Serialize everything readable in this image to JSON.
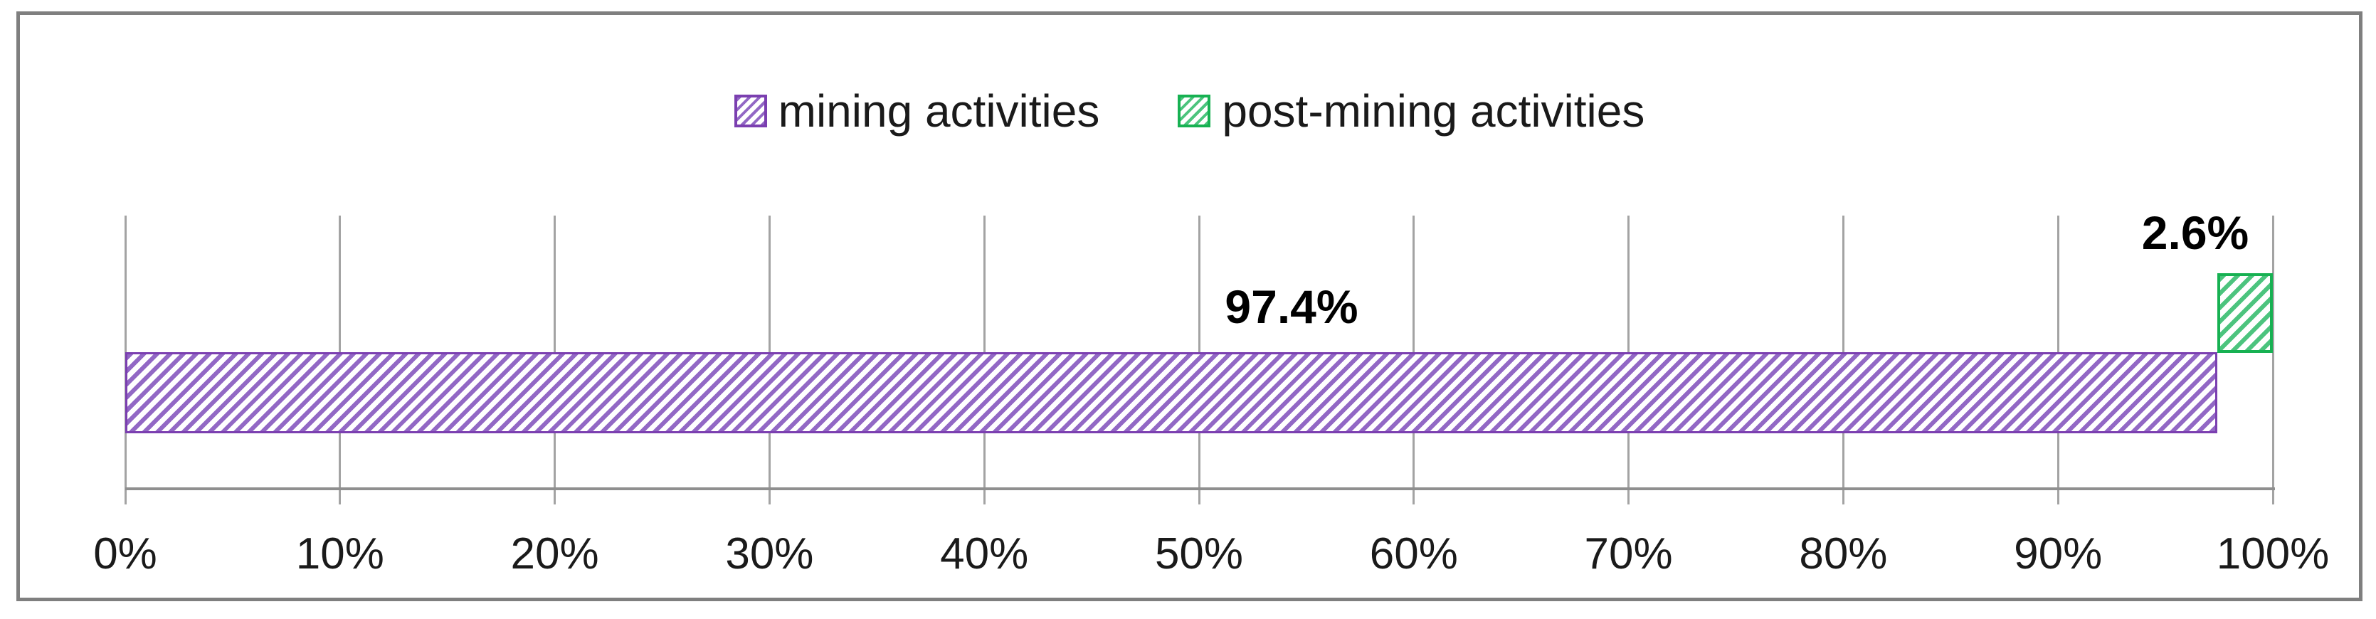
{
  "chart_data": {
    "type": "bar",
    "orientation": "horizontal",
    "title": "",
    "xlabel": "",
    "ylabel": "",
    "xlim": [
      0,
      100
    ],
    "x_ticks": [
      "0%",
      "10%",
      "20%",
      "30%",
      "40%",
      "50%",
      "60%",
      "70%",
      "80%",
      "90%",
      "100%"
    ],
    "grid": "vertical gridlines with ticks below axis",
    "legend_position": "top-center",
    "series": [
      {
        "name": "mining activities",
        "value": 97.4,
        "label": "97.4%"
      },
      {
        "name": "post-mining activities",
        "value": 2.6,
        "label": "2.6%"
      }
    ]
  },
  "legend": {
    "items": [
      {
        "label": "mining activities",
        "swatch": "purple-diagonal-hatch"
      },
      {
        "label": "post-mining activities",
        "swatch": "green-diagonal-hatch"
      }
    ]
  },
  "colors": {
    "mining_hatch": "#9268c5",
    "mining_border": "#7b3fb0",
    "post_mining_hatch": "#4cc47e",
    "post_mining_border": "#17b152",
    "gridline": "#a3a3a3",
    "axis_line": "#8f8f8f",
    "frame_border": "#7f7f7f",
    "label_text": "#000000"
  }
}
